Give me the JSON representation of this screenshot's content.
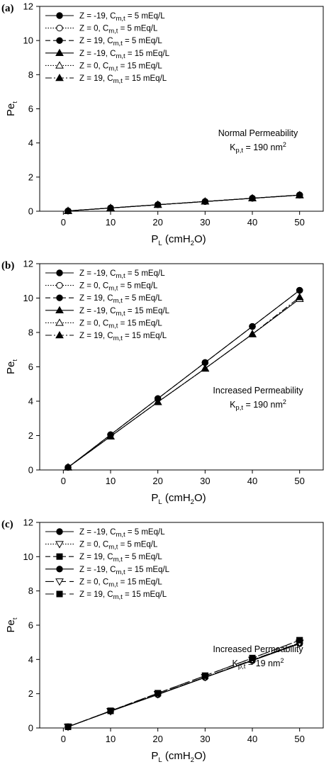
{
  "chart_data": [
    {
      "type": "line",
      "panel_label": "(a)",
      "xlabel": {
        "main": "P",
        "sub": "L",
        "rest_before": " (cmH",
        "sub2": "2",
        "rest_after": "O)"
      },
      "ylabel": {
        "main": "Pe",
        "sub": "t"
      },
      "xlim": [
        -5,
        55
      ],
      "ylim": [
        0,
        12
      ],
      "xticks": [
        "0",
        "10",
        "20",
        "30",
        "40",
        "50"
      ],
      "yticks": [
        "0",
        "2",
        "4",
        "6",
        "8",
        "10",
        "12"
      ],
      "x": [
        1,
        10,
        20,
        30,
        40,
        50
      ],
      "series": [
        {
          "name_pre": "Z = -19, C",
          "name_sub": "m,t",
          "name_post": " = 5 mEq/L",
          "line": "solid",
          "marker": "circle-filled",
          "values": [
            0.02,
            0.19,
            0.38,
            0.57,
            0.76,
            0.95
          ]
        },
        {
          "name_pre": "Z = 0, C",
          "name_sub": "m,t",
          "name_post": " = 5 mEq/L",
          "line": "dotted",
          "marker": "circle-open",
          "values": [
            0.02,
            0.19,
            0.38,
            0.57,
            0.76,
            0.95
          ]
        },
        {
          "name_pre": "Z = 19, C",
          "name_sub": "m,t",
          "name_post": " = 5 mEq/L",
          "line": "dashed",
          "marker": "circle-filled",
          "values": [
            0.02,
            0.19,
            0.38,
            0.57,
            0.76,
            0.95
          ]
        },
        {
          "name_pre": "Z = -19, C",
          "name_sub": "m,t",
          "name_post": " = 15 mEq/L",
          "line": "solid",
          "marker": "triangle-up-filled",
          "values": [
            0.02,
            0.19,
            0.38,
            0.57,
            0.76,
            0.94
          ]
        },
        {
          "name_pre": "Z = 0, C",
          "name_sub": "m,t",
          "name_post": " = 15 mEq/L",
          "line": "dotted",
          "marker": "triangle-up-open",
          "values": [
            0.02,
            0.19,
            0.38,
            0.57,
            0.76,
            0.94
          ]
        },
        {
          "name_pre": "Z = 19, C",
          "name_sub": "m,t",
          "name_post": " = 15 mEq/L",
          "line": "dashdot",
          "marker": "triangle-up-filled",
          "values": [
            0.02,
            0.19,
            0.38,
            0.57,
            0.76,
            0.94
          ]
        }
      ],
      "annotation": {
        "line1": "Normal Permeability",
        "k_main": "K",
        "k_sub": "p,t",
        "k_rest": " = 190 nm",
        "k_sup": "2"
      },
      "legend_placement": "top-left",
      "grid": false
    },
    {
      "type": "line",
      "panel_label": "(b)",
      "xlabel": {
        "main": "P",
        "sub": "L",
        "rest_before": " (cmH",
        "sub2": "2",
        "rest_after": "O)"
      },
      "ylabel": {
        "main": "Pe",
        "sub": "t"
      },
      "xlim": [
        -5,
        55
      ],
      "ylim": [
        0,
        12
      ],
      "xticks": [
        "0",
        "10",
        "20",
        "30",
        "40",
        "50"
      ],
      "yticks": [
        "0",
        "2",
        "4",
        "6",
        "8",
        "10",
        "12"
      ],
      "x": [
        1,
        10,
        20,
        30,
        40,
        50
      ],
      "series": [
        {
          "name_pre": "Z = -19, C",
          "name_sub": "m,t",
          "name_post": " = 5 mEq/L",
          "line": "solid",
          "marker": "circle-filled",
          "values": [
            0.15,
            2.05,
            4.15,
            6.25,
            8.35,
            10.45
          ]
        },
        {
          "name_pre": "Z = 0, C",
          "name_sub": "m,t",
          "name_post": " = 5 mEq/L",
          "line": "dotted",
          "marker": "circle-open",
          "values": [
            0.15,
            2.05,
            4.15,
            6.25,
            8.35,
            10.45
          ]
        },
        {
          "name_pre": "Z = 19, C",
          "name_sub": "m,t",
          "name_post": " = 5 mEq/L",
          "line": "dashed",
          "marker": "circle-filled",
          "values": [
            0.15,
            2.05,
            4.15,
            6.25,
            8.35,
            10.45
          ]
        },
        {
          "name_pre": "Z = -19, C",
          "name_sub": "m,t",
          "name_post": " = 15 mEq/L",
          "line": "solid",
          "marker": "triangle-up-filled",
          "values": [
            0.15,
            1.95,
            3.95,
            5.9,
            7.9,
            9.95
          ]
        },
        {
          "name_pre": "Z = 0, C",
          "name_sub": "m,t",
          "name_post": " = 15 mEq/L",
          "line": "dotted",
          "marker": "triangle-up-open",
          "values": [
            0.15,
            1.95,
            3.95,
            5.9,
            7.9,
            9.95
          ]
        },
        {
          "name_pre": "Z = 19, C",
          "name_sub": "m,t",
          "name_post": " = 15 mEq/L",
          "line": "dashdot",
          "marker": "triangle-up-filled",
          "values": [
            0.15,
            1.95,
            3.95,
            5.9,
            7.9,
            10.05
          ]
        }
      ],
      "annotation": {
        "line1": "Increased Permeability",
        "k_main": "K",
        "k_sub": "p,t",
        "k_rest": " = 190 nm",
        "k_sup": "2"
      },
      "legend_placement": "top-left",
      "grid": false
    },
    {
      "type": "line",
      "panel_label": "(c)",
      "xlabel": {
        "main": "P",
        "sub": "L",
        "rest_before": " (cmH",
        "sub2": "2",
        "rest_after": "O)"
      },
      "ylabel": {
        "main": "Pe",
        "sub": "t"
      },
      "xlim": [
        -5,
        55
      ],
      "ylim": [
        0,
        12
      ],
      "xticks": [
        "0",
        "10",
        "20",
        "30",
        "40",
        "50"
      ],
      "yticks": [
        "0",
        "2",
        "4",
        "6",
        "8",
        "10",
        "12"
      ],
      "x": [
        1,
        10,
        20,
        30,
        40,
        50
      ],
      "series": [
        {
          "name_pre": "Z = -19, C",
          "name_sub": "m,t",
          "name_post": " = 5 mEq/L",
          "line": "solid",
          "marker": "circle-filled",
          "values": [
            0.07,
            0.98,
            1.95,
            2.95,
            3.95,
            4.95
          ]
        },
        {
          "name_pre": "Z = 0, C",
          "name_sub": "m,t",
          "name_post": " = 5 mEq/L",
          "line": "dotted",
          "marker": "triangle-down-open",
          "values": [
            0.07,
            0.98,
            1.97,
            2.97,
            3.97,
            4.97
          ]
        },
        {
          "name_pre": "Z = 19, C",
          "name_sub": "m,t",
          "name_post": " = 5 mEq/L",
          "line": "dashed",
          "marker": "square-filled",
          "values": [
            0.07,
            1.0,
            2.03,
            3.05,
            4.08,
            5.12
          ]
        },
        {
          "name_pre": "Z = -19, C",
          "name_sub": "m,t",
          "name_post": " = 15 mEq/L",
          "line": "solid",
          "marker": "circle-filled",
          "values": [
            0.07,
            0.98,
            1.95,
            2.95,
            3.93,
            4.92
          ]
        },
        {
          "name_pre": "Z = 0, C",
          "name_sub": "m,t",
          "name_post": " = 15 mEq/L",
          "line": "longdash",
          "marker": "triangle-down-open",
          "values": [
            0.07,
            0.98,
            1.97,
            2.97,
            3.97,
            4.97
          ]
        },
        {
          "name_pre": "Z = 19, C",
          "name_sub": "m,t",
          "name_post": " = 15 mEq/L",
          "line": "longdash",
          "marker": "square-filled",
          "values": [
            0.07,
            1.0,
            2.03,
            3.05,
            4.08,
            5.12
          ]
        }
      ],
      "annotation": {
        "line1": "Increased Permeability",
        "k_main": "K",
        "k_sub": "p,t",
        "k_rest": " = 19 nm",
        "k_sup": "2"
      },
      "legend_placement": "top-left",
      "grid": false
    }
  ]
}
